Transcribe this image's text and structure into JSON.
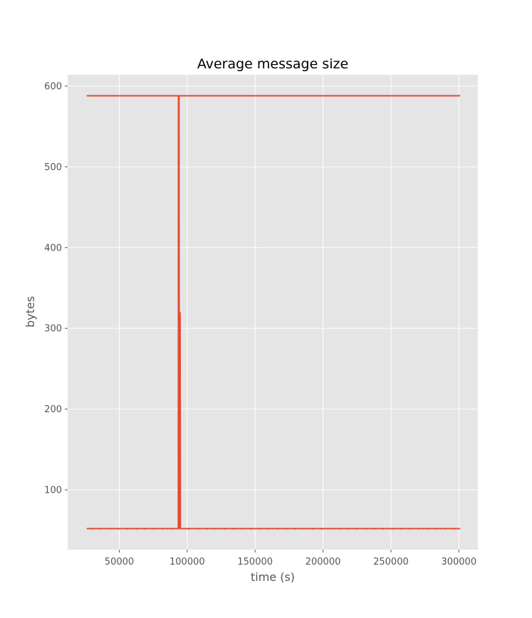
{
  "chart_data": {
    "type": "line",
    "title": "Average message size",
    "xlabel": "time (s)",
    "ylabel": "bytes",
    "xlim": [
      12000,
      314000
    ],
    "ylim": [
      26,
      614
    ],
    "xticks": [
      50000,
      100000,
      150000,
      200000,
      250000,
      300000
    ],
    "yticks": [
      100,
      200,
      300,
      400,
      500,
      600
    ],
    "grid": true,
    "legend": "none",
    "colors": {
      "line": "#E24A33",
      "plot_background": "#E5E5E5",
      "grid": "#FFFFFF",
      "tick_text": "#555555"
    },
    "series": [
      {
        "x": [
          26000,
          93500,
          93600,
          94000,
          94200,
          94300,
          94600,
          94800,
          95000,
          301000
        ],
        "y": [
          52,
          52,
          588,
          588,
          52,
          320,
          52,
          320,
          52,
          52
        ],
        "marker_style": "dash-dot"
      },
      {
        "x": [
          26000,
          93500,
          94000,
          301000
        ],
        "y": [
          588,
          588,
          588,
          588
        ],
        "marker_style": "dotted"
      }
    ]
  }
}
